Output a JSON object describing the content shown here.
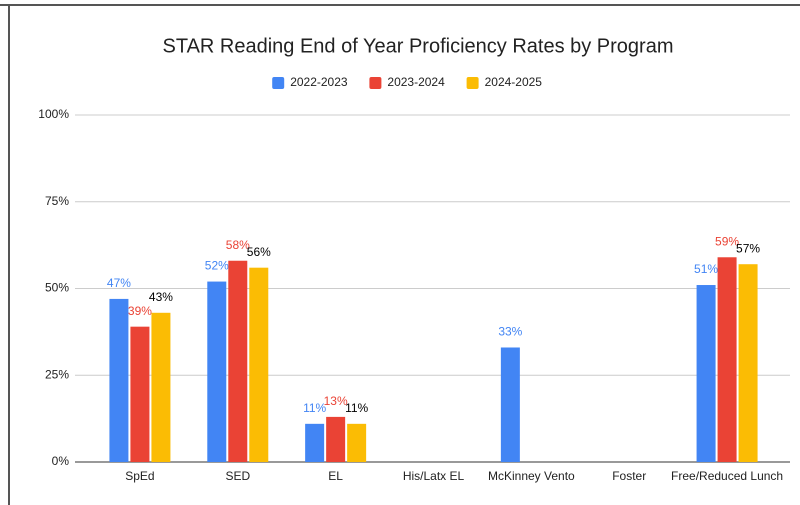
{
  "chart_data": {
    "type": "bar",
    "title": "STAR Reading End of Year Proficiency Rates by Program",
    "categories": [
      "SpEd",
      "SED",
      "EL",
      "His/Latx EL",
      "McKinney Vento",
      "Foster",
      "Free/Reduced Lunch"
    ],
    "series": [
      {
        "name": "2022-2023",
        "color": "#4285f4",
        "label_color": "#4285f4",
        "values": [
          47,
          52,
          11,
          null,
          33,
          null,
          51
        ],
        "value_labels": [
          "47%",
          "52%",
          "11%",
          null,
          "33%",
          null,
          "51%"
        ]
      },
      {
        "name": "2023-2024",
        "color": "#ea4335",
        "label_color": "#ea4335",
        "values": [
          39,
          58,
          13,
          null,
          null,
          null,
          59
        ],
        "value_labels": [
          "39%",
          "58%",
          "13%",
          null,
          null,
          null,
          "59%"
        ]
      },
      {
        "name": "2024-2025",
        "color": "#fbbc04",
        "label_color": "#000000",
        "values": [
          43,
          56,
          11,
          null,
          null,
          null,
          57
        ],
        "value_labels": [
          "43%",
          "56%",
          "11%",
          null,
          null,
          null,
          "57%"
        ]
      }
    ],
    "ylim": [
      0,
      100
    ],
    "yticks": [
      {
        "value": 0,
        "label": "0%"
      },
      {
        "value": 25,
        "label": "25%"
      },
      {
        "value": 50,
        "label": "50%"
      },
      {
        "value": 75,
        "label": "75%"
      },
      {
        "value": 100,
        "label": "100%"
      }
    ],
    "grid": true,
    "legend": "top"
  }
}
